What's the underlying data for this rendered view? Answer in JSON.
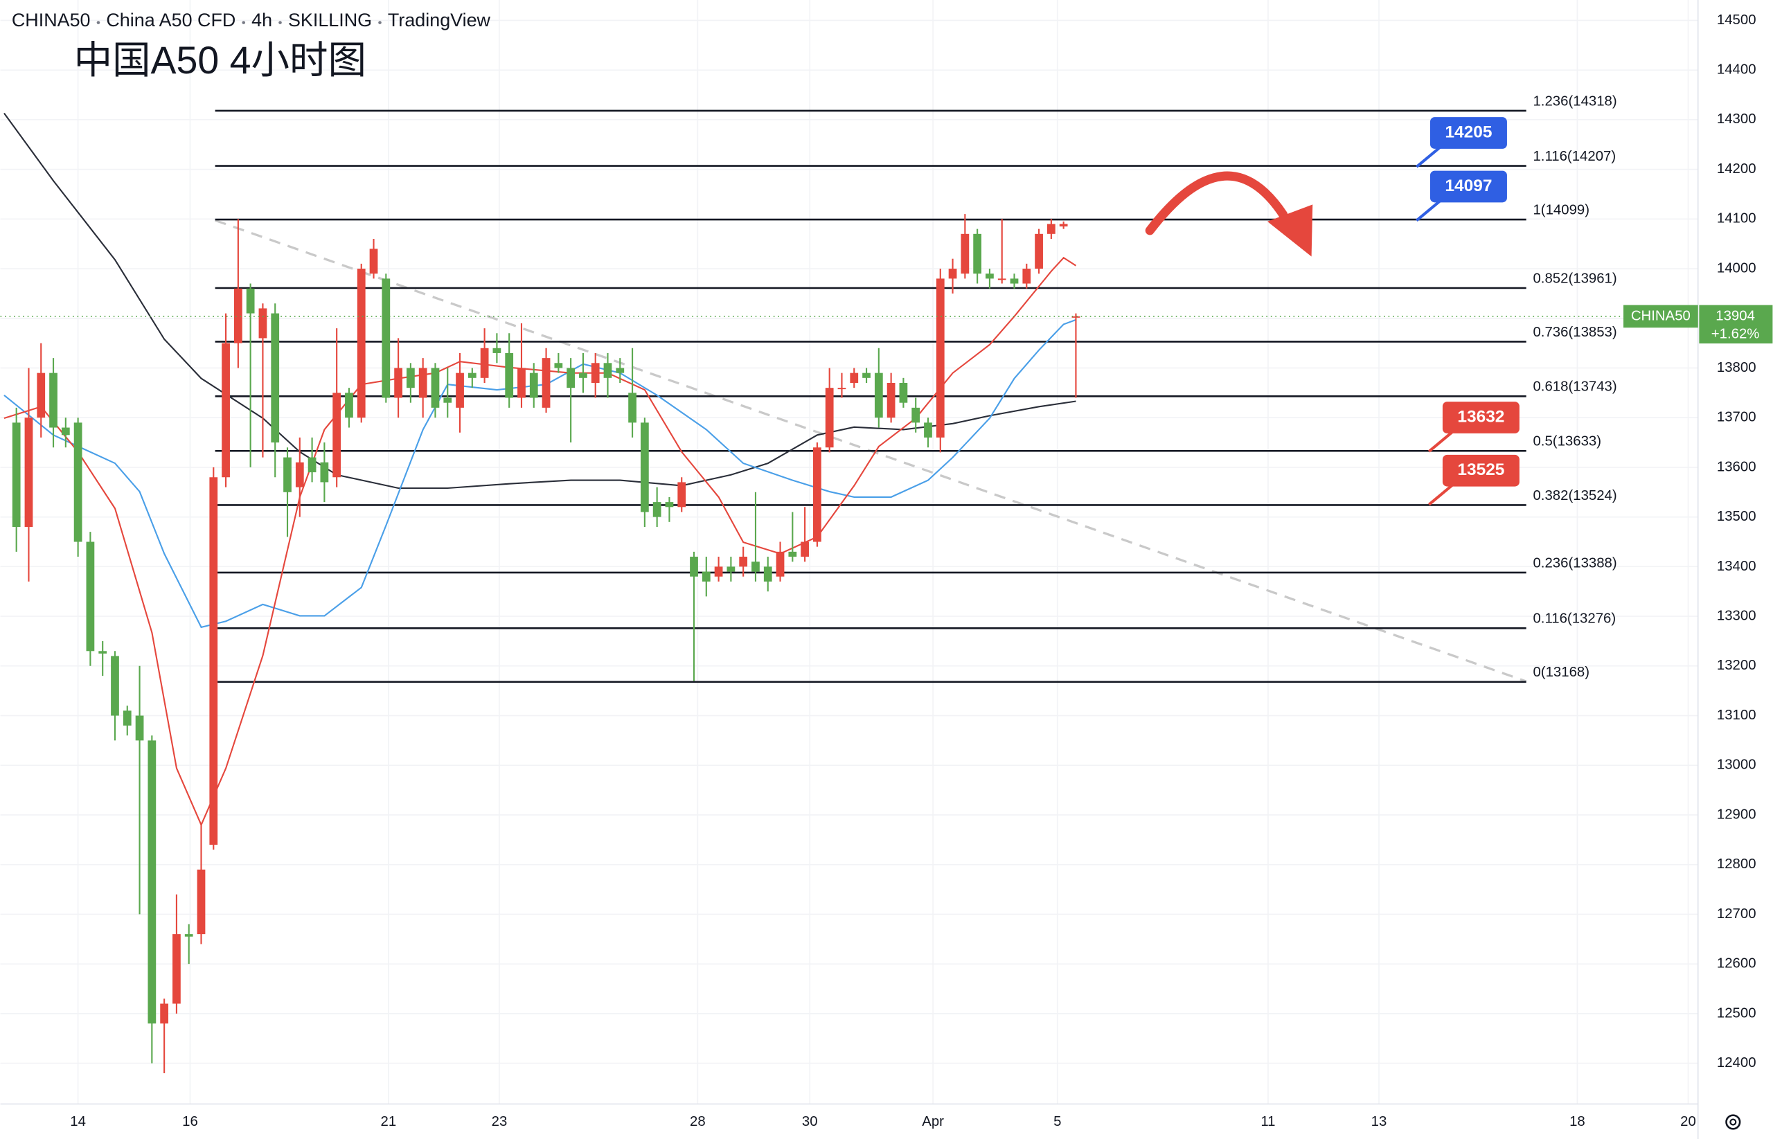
{
  "chart_data": {
    "type": "candlestick",
    "header": [
      "CHINA50",
      "China A50 CFD",
      "4h",
      "SKILLING",
      "TradingView"
    ],
    "title": "中国A50 4小时图",
    "x": [
      0,
      1,
      2,
      3,
      4,
      5,
      6,
      7,
      8,
      9,
      10,
      11,
      12,
      13,
      14,
      15,
      16,
      17,
      18,
      19,
      20,
      21,
      22,
      23,
      24,
      25,
      26,
      27,
      28,
      29,
      30,
      31,
      32,
      33,
      34,
      35,
      36,
      37,
      38,
      39,
      40,
      41,
      42,
      43,
      44,
      45,
      46,
      47,
      48,
      49,
      50,
      51,
      52,
      53,
      54,
      55,
      56,
      57,
      58,
      59,
      60,
      61,
      62,
      63,
      64,
      65,
      66,
      67,
      68,
      69,
      70,
      71,
      72,
      73,
      74,
      75,
      76,
      77,
      78,
      79,
      80,
      81,
      82,
      83,
      84,
      85,
      86
    ],
    "open": [
      13690,
      13480,
      13700,
      13790,
      13680,
      13690,
      13450,
      13230,
      13220,
      13110,
      13100,
      13050,
      12480,
      12520,
      12660,
      12660,
      12840,
      13580,
      13850,
      13960,
      13860,
      13910,
      13620,
      13560,
      13620,
      13610,
      13580,
      13750,
      13700,
      13990,
      13980,
      13740,
      13800,
      13740,
      13800,
      13740,
      13720,
      13790,
      13780,
      13840,
      13830,
      13740,
      13790,
      13720,
      13810,
      13800,
      13790,
      13770,
      13810,
      13800,
      13750,
      13690,
      13530,
      13530,
      13520,
      13420,
      13390,
      13380,
      13400,
      13400,
      13410,
      13400,
      13380,
      13430,
      13420,
      13450,
      13640,
      13760,
      13770,
      13790,
      13790,
      13700,
      13770,
      13720,
      13690,
      13660,
      13980,
      13990,
      14070,
      13990,
      13980,
      13980,
      13970,
      14000,
      14070,
      14085,
      13904
    ],
    "high": [
      13720,
      13800,
      13850,
      13820,
      13700,
      13700,
      13470,
      13250,
      13230,
      13120,
      13200,
      13060,
      12530,
      12740,
      12680,
      12880,
      13600,
      13910,
      14100,
      13970,
      13930,
      13930,
      13640,
      13660,
      13660,
      13650,
      13880,
      13760,
      14010,
      14060,
      13990,
      13860,
      13810,
      13820,
      13810,
      13800,
      13830,
      13800,
      13880,
      13870,
      13870,
      13890,
      13810,
      13840,
      13830,
      13820,
      13830,
      13830,
      13830,
      13820,
      13840,
      13700,
      13560,
      13540,
      13580,
      13430,
      13420,
      13420,
      13420,
      13440,
      13550,
      13420,
      13450,
      13510,
      13520,
      13650,
      13800,
      13790,
      13800,
      13800,
      13840,
      13790,
      13780,
      13740,
      13700,
      14000,
      14020,
      14110,
      14080,
      14000,
      14100,
      13990,
      14010,
      14080,
      14100,
      14095,
      13910
    ],
    "low": [
      13430,
      13370,
      13660,
      13640,
      13640,
      13420,
      13200,
      13180,
      13050,
      13060,
      12700,
      12400,
      12380,
      12500,
      12600,
      12640,
      12830,
      13560,
      13800,
      13600,
      13620,
      13580,
      13460,
      13500,
      13570,
      13530,
      13560,
      13680,
      13690,
      13980,
      13730,
      13700,
      13730,
      13700,
      13700,
      13700,
      13670,
      13760,
      13770,
      13810,
      13720,
      13720,
      13720,
      13710,
      13790,
      13650,
      13750,
      13740,
      13740,
      13770,
      13660,
      13480,
      13480,
      13490,
      13510,
      13170,
      13340,
      13370,
      13370,
      13380,
      13370,
      13350,
      13370,
      13410,
      13410,
      13440,
      13630,
      13740,
      13760,
      13770,
      13680,
      13690,
      13720,
      13670,
      13640,
      13630,
      13950,
      13980,
      13970,
      13960,
      13970,
      13960,
      13960,
      13990,
      14060,
      14080,
      13740
    ],
    "close": [
      13480,
      13700,
      13790,
      13680,
      13665,
      13450,
      13230,
      13225,
      13100,
      13080,
      13050,
      12480,
      12520,
      12660,
      12655,
      12790,
      13580,
      13850,
      13960,
      13910,
      13920,
      13650,
      13550,
      13610,
      13590,
      13570,
      13750,
      13700,
      14000,
      14040,
      13740,
      13800,
      13760,
      13800,
      13720,
      13730,
      13790,
      13780,
      13840,
      13830,
      13740,
      13800,
      13740,
      13820,
      13800,
      13760,
      13780,
      13810,
      13780,
      13790,
      13690,
      13510,
      13500,
      13520,
      13570,
      13380,
      13370,
      13400,
      13390,
      13420,
      13390,
      13370,
      13430,
      13420,
      13450,
      13640,
      13760,
      13760,
      13790,
      13780,
      13700,
      13770,
      13730,
      13690,
      13660,
      13980,
      14000,
      14070,
      13990,
      13980,
      13980,
      13970,
      14000,
      14070,
      14090,
      14090,
      13904
    ],
    "up_color": "#e5473d",
    "down_color": "#5aa84e",
    "moving_averages": [
      {
        "color": "#2a2e39",
        "x": [
          -1,
          3,
          8,
          12,
          15,
          20,
          23,
          26,
          31,
          35,
          40,
          45,
          49,
          54,
          58,
          61,
          65,
          68,
          72,
          76,
          79,
          83,
          86
        ],
        "values": [
          14313,
          14177,
          14018,
          13858,
          13779,
          13699,
          13631,
          13585,
          13558,
          13558,
          13567,
          13574,
          13574,
          13563,
          13585,
          13608,
          13665,
          13681,
          13676,
          13688,
          13704,
          13722,
          13733
        ]
      },
      {
        "color": "#4a9fe8",
        "x": [
          -1,
          3,
          8,
          10,
          12,
          15,
          17,
          20,
          23,
          25,
          28,
          30,
          33,
          35,
          39,
          43,
          46,
          49,
          52,
          56,
          59,
          63,
          66,
          68,
          71,
          74,
          76,
          79,
          81,
          83,
          85,
          86
        ],
        "values": [
          13745,
          13665,
          13608,
          13551,
          13426,
          13278,
          13290,
          13324,
          13301,
          13301,
          13358,
          13483,
          13676,
          13767,
          13756,
          13767,
          13808,
          13790,
          13745,
          13676,
          13608,
          13574,
          13551,
          13540,
          13540,
          13574,
          13620,
          13699,
          13779,
          13836,
          13888,
          13897
        ]
      },
      {
        "color": "#e5473d",
        "x": [
          -1,
          2,
          5,
          8,
          11,
          13,
          15,
          17,
          20,
          23,
          25,
          28,
          31,
          34,
          36,
          40,
          45,
          48,
          51,
          54,
          57,
          59,
          62,
          65,
          68,
          70,
          73,
          76,
          79,
          81,
          84,
          85,
          86
        ],
        "values": [
          13699,
          13722,
          13631,
          13517,
          13267,
          12994,
          12880,
          12994,
          13221,
          13540,
          13676,
          13767,
          13779,
          13790,
          13813,
          13801,
          13790,
          13790,
          13756,
          13631,
          13540,
          13449,
          13426,
          13460,
          13563,
          13642,
          13699,
          13790,
          13847,
          13904,
          13995,
          14022,
          14006
        ]
      }
    ],
    "fib_levels": [
      {
        "value": 14318,
        "label": "1.236(14318)"
      },
      {
        "value": 14207,
        "label": "1.116(14207)"
      },
      {
        "value": 14099,
        "label": "1(14099)"
      },
      {
        "value": 13961,
        "label": "0.852(13961)"
      },
      {
        "value": 13853,
        "label": "0.736(13853)"
      },
      {
        "value": 13743,
        "label": "0.618(13743)"
      },
      {
        "value": 13633,
        "label": "0.5(13633)"
      },
      {
        "value": 13524,
        "label": "0.382(13524)"
      },
      {
        "value": 13388,
        "label": "0.236(13388)"
      },
      {
        "value": 13276,
        "label": "0.116(13276)"
      },
      {
        "value": 13168,
        "label": "0(13168)"
      }
    ],
    "price_markers": [
      {
        "value": 14205,
        "color": "#2f5fe3"
      },
      {
        "value": 14097,
        "color": "#2f5fe3"
      },
      {
        "value": 13632,
        "color": "#e5473d"
      },
      {
        "value": 13525,
        "color": "#e5473d"
      }
    ],
    "last_price": {
      "symbol": "CHINA50",
      "value": 13904,
      "change": "+1.62%",
      "color": "#5aa84e"
    },
    "ylim": [
      12318,
      14541
    ],
    "yticks": [
      12400,
      12500,
      12600,
      12700,
      12800,
      12900,
      13000,
      13100,
      13200,
      13300,
      13400,
      13500,
      13600,
      13700,
      13800,
      13900,
      14000,
      14100,
      14200,
      14300,
      14400,
      14500
    ],
    "xlim": [
      -1.3,
      136.5
    ],
    "xticks": [
      {
        "value": 5.0,
        "label": "14"
      },
      {
        "value": 14.1,
        "label": "16"
      },
      {
        "value": 30.2,
        "label": "21"
      },
      {
        "value": 39.2,
        "label": "23"
      },
      {
        "value": 55.3,
        "label": "28"
      },
      {
        "value": 64.4,
        "label": "30"
      },
      {
        "value": 74.4,
        "label": "Apr"
      },
      {
        "value": 84.5,
        "label": "5"
      },
      {
        "value": 101.6,
        "label": "11"
      },
      {
        "value": 110.6,
        "label": "13"
      },
      {
        "value": 126.7,
        "label": "18"
      },
      {
        "value": 135.7,
        "label": "20"
      }
    ],
    "grid": true
  }
}
